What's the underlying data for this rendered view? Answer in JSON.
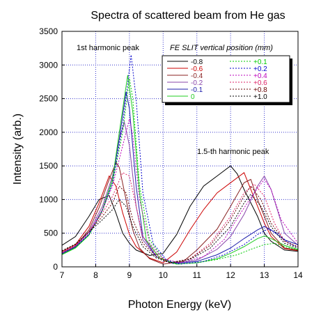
{
  "chart_data": {
    "type": "line",
    "title": "Spectra of scattered beam from He gas",
    "xlabel": "Photon Energy (keV)",
    "ylabel": "Intensity (arb.)",
    "xlim": [
      7,
      14
    ],
    "ylim": [
      0,
      3500
    ],
    "xticks": [
      "7",
      "8",
      "9",
      "10",
      "11",
      "12",
      "13",
      "14"
    ],
    "yticks": [
      "0",
      "500",
      "1000",
      "1500",
      "2000",
      "2500",
      "3000",
      "3500"
    ],
    "grid": true,
    "legend_title": "FE SLIT vertical position (mm)",
    "legend_position": "top-right",
    "annotations": [
      "1st harmonic peak",
      "1.5-th harmonic peak"
    ],
    "series": [
      {
        "name": "-0.8",
        "color": "#000000",
        "dash": "solid",
        "points": [
          [
            7,
            320
          ],
          [
            7.4,
            450
          ],
          [
            7.8,
            750
          ],
          [
            8.1,
            1000
          ],
          [
            8.4,
            1060
          ],
          [
            8.6,
            800
          ],
          [
            8.8,
            500
          ],
          [
            9.0,
            350
          ],
          [
            9.2,
            250
          ],
          [
            9.6,
            170
          ],
          [
            10.0,
            200
          ],
          [
            10.4,
            480
          ],
          [
            10.8,
            900
          ],
          [
            11.2,
            1200
          ],
          [
            11.6,
            1350
          ],
          [
            12.0,
            1500
          ],
          [
            12.2,
            1380
          ],
          [
            12.4,
            1150
          ],
          [
            12.8,
            750
          ],
          [
            13.0,
            500
          ],
          [
            13.2,
            380
          ],
          [
            13.6,
            250
          ],
          [
            14,
            230
          ]
        ]
      },
      {
        "name": "-0.6",
        "color": "#cc0000",
        "dash": "solid",
        "points": [
          [
            7,
            230
          ],
          [
            7.4,
            330
          ],
          [
            7.8,
            600
          ],
          [
            8.1,
            950
          ],
          [
            8.4,
            1350
          ],
          [
            8.6,
            1200
          ],
          [
            8.8,
            800
          ],
          [
            9.0,
            480
          ],
          [
            9.2,
            300
          ],
          [
            9.6,
            130
          ],
          [
            10.0,
            60
          ],
          [
            10.4,
            220
          ],
          [
            10.8,
            550
          ],
          [
            11.2,
            850
          ],
          [
            11.6,
            1100
          ],
          [
            12.0,
            1250
          ],
          [
            12.4,
            1400
          ],
          [
            12.6,
            1150
          ],
          [
            13.0,
            650
          ],
          [
            13.2,
            450
          ],
          [
            13.6,
            270
          ],
          [
            14,
            240
          ]
        ]
      },
      {
        "name": "-0.4",
        "color": "#882222",
        "dash": "solid",
        "points": [
          [
            7,
            210
          ],
          [
            7.4,
            310
          ],
          [
            7.8,
            550
          ],
          [
            8.1,
            880
          ],
          [
            8.4,
            1300
          ],
          [
            8.6,
            1550
          ],
          [
            8.7,
            1480
          ],
          [
            8.9,
            1000
          ],
          [
            9.1,
            550
          ],
          [
            9.3,
            280
          ],
          [
            9.6,
            120
          ],
          [
            10.0,
            40
          ],
          [
            10.6,
            80
          ],
          [
            11.0,
            250
          ],
          [
            11.6,
            560
          ],
          [
            12.0,
            900
          ],
          [
            12.4,
            1250
          ],
          [
            12.6,
            1300
          ],
          [
            12.8,
            1000
          ],
          [
            13.2,
            500
          ],
          [
            13.6,
            280
          ],
          [
            14,
            250
          ]
        ]
      },
      {
        "name": "-0.2",
        "color": "#8844aa",
        "dash": "solid",
        "points": [
          [
            7,
            200
          ],
          [
            7.4,
            300
          ],
          [
            7.8,
            520
          ],
          [
            8.2,
            900
          ],
          [
            8.5,
            1350
          ],
          [
            8.7,
            1900
          ],
          [
            8.85,
            2150
          ],
          [
            9.0,
            1800
          ],
          [
            9.2,
            900
          ],
          [
            9.4,
            400
          ],
          [
            9.8,
            150
          ],
          [
            10.3,
            50
          ],
          [
            11.0,
            100
          ],
          [
            11.6,
            260
          ],
          [
            12.0,
            450
          ],
          [
            12.4,
            780
          ],
          [
            12.8,
            1200
          ],
          [
            13.0,
            1350
          ],
          [
            13.2,
            1150
          ],
          [
            13.6,
            500
          ],
          [
            14,
            320
          ]
        ]
      },
      {
        "name": "-0.1",
        "color": "#1a1aaa",
        "dash": "solid",
        "points": [
          [
            7,
            190
          ],
          [
            7.4,
            290
          ],
          [
            7.8,
            480
          ],
          [
            8.2,
            850
          ],
          [
            8.5,
            1300
          ],
          [
            8.7,
            1900
          ],
          [
            8.9,
            2600
          ],
          [
            9.0,
            2350
          ],
          [
            9.2,
            1200
          ],
          [
            9.4,
            450
          ],
          [
            9.8,
            150
          ],
          [
            10.3,
            50
          ],
          [
            11.0,
            80
          ],
          [
            11.6,
            180
          ],
          [
            12.0,
            280
          ],
          [
            12.4,
            420
          ],
          [
            12.8,
            550
          ],
          [
            13.0,
            600
          ],
          [
            13.2,
            550
          ],
          [
            13.6,
            400
          ],
          [
            14,
            330
          ]
        ]
      },
      {
        "name": "0",
        "color": "#22cc22",
        "dash": "solid",
        "points": [
          [
            7,
            180
          ],
          [
            7.4,
            280
          ],
          [
            7.8,
            470
          ],
          [
            8.2,
            850
          ],
          [
            8.5,
            1300
          ],
          [
            8.7,
            2000
          ],
          [
            8.95,
            2850
          ],
          [
            9.1,
            2300
          ],
          [
            9.3,
            1100
          ],
          [
            9.5,
            400
          ],
          [
            9.9,
            130
          ],
          [
            10.4,
            40
          ],
          [
            11.0,
            60
          ],
          [
            11.6,
            120
          ],
          [
            12.0,
            200
          ],
          [
            12.4,
            300
          ],
          [
            12.8,
            420
          ],
          [
            13.0,
            460
          ],
          [
            13.2,
            420
          ],
          [
            13.6,
            320
          ],
          [
            14,
            260
          ]
        ]
      },
      {
        "name": "+0.1",
        "color": "#00cc00",
        "dash": "dashed",
        "points": [
          [
            7,
            190
          ],
          [
            7.4,
            290
          ],
          [
            7.8,
            470
          ],
          [
            8.2,
            830
          ],
          [
            8.5,
            1250
          ],
          [
            8.8,
            2000
          ],
          [
            9.0,
            2800
          ],
          [
            9.1,
            2500
          ],
          [
            9.3,
            1200
          ],
          [
            9.6,
            400
          ],
          [
            10.0,
            120
          ],
          [
            10.4,
            40
          ],
          [
            11.0,
            60
          ],
          [
            11.6,
            110
          ],
          [
            12.2,
            180
          ],
          [
            12.6,
            260
          ],
          [
            13.0,
            330
          ],
          [
            13.3,
            350
          ],
          [
            13.6,
            300
          ],
          [
            14,
            250
          ]
        ]
      },
      {
        "name": "+0.2",
        "color": "#0000cc",
        "dash": "dashed",
        "points": [
          [
            7,
            200
          ],
          [
            7.4,
            300
          ],
          [
            7.8,
            480
          ],
          [
            8.2,
            840
          ],
          [
            8.5,
            1250
          ],
          [
            8.8,
            2100
          ],
          [
            9.05,
            3150
          ],
          [
            9.2,
            2500
          ],
          [
            9.4,
            1100
          ],
          [
            9.7,
            350
          ],
          [
            10.1,
            100
          ],
          [
            10.5,
            40
          ],
          [
            11.2,
            80
          ],
          [
            11.8,
            180
          ],
          [
            12.4,
            330
          ],
          [
            12.8,
            480
          ],
          [
            13.1,
            560
          ],
          [
            13.4,
            500
          ],
          [
            13.7,
            360
          ],
          [
            14,
            280
          ]
        ]
      },
      {
        "name": "+0.4",
        "color": "#bb00bb",
        "dash": "dashed",
        "points": [
          [
            7,
            210
          ],
          [
            7.4,
            310
          ],
          [
            7.8,
            500
          ],
          [
            8.2,
            850
          ],
          [
            8.5,
            1200
          ],
          [
            8.8,
            1800
          ],
          [
            9.0,
            2200
          ],
          [
            9.1,
            1950
          ],
          [
            9.3,
            1000
          ],
          [
            9.6,
            350
          ],
          [
            10.0,
            120
          ],
          [
            10.5,
            60
          ],
          [
            11.2,
            150
          ],
          [
            11.8,
            400
          ],
          [
            12.3,
            800
          ],
          [
            12.7,
            1100
          ],
          [
            13.0,
            1300
          ],
          [
            13.2,
            1150
          ],
          [
            13.5,
            700
          ],
          [
            14,
            350
          ]
        ]
      },
      {
        "name": "+0.6",
        "color": "#dd2266",
        "dash": "dashed",
        "points": [
          [
            7,
            220
          ],
          [
            7.4,
            320
          ],
          [
            7.8,
            520
          ],
          [
            8.2,
            800
          ],
          [
            8.5,
            1050
          ],
          [
            8.8,
            1400
          ],
          [
            9.0,
            1350
          ],
          [
            9.2,
            900
          ],
          [
            9.4,
            450
          ],
          [
            9.8,
            180
          ],
          [
            10.2,
            60
          ],
          [
            10.8,
            120
          ],
          [
            11.4,
            350
          ],
          [
            12.0,
            750
          ],
          [
            12.4,
            1100
          ],
          [
            12.7,
            1230
          ],
          [
            13.0,
            1050
          ],
          [
            13.3,
            650
          ],
          [
            13.6,
            380
          ],
          [
            14,
            300
          ]
        ]
      },
      {
        "name": "+0.8",
        "color": "#660000",
        "dash": "dashed",
        "points": [
          [
            7,
            230
          ],
          [
            7.4,
            330
          ],
          [
            7.8,
            520
          ],
          [
            8.2,
            750
          ],
          [
            8.5,
            950
          ],
          [
            8.7,
            1200
          ],
          [
            8.9,
            1100
          ],
          [
            9.1,
            700
          ],
          [
            9.4,
            350
          ],
          [
            9.8,
            150
          ],
          [
            10.2,
            60
          ],
          [
            10.8,
            120
          ],
          [
            11.4,
            320
          ],
          [
            12.0,
            700
          ],
          [
            12.4,
            1050
          ],
          [
            12.6,
            1200
          ],
          [
            12.9,
            1000
          ],
          [
            13.2,
            650
          ],
          [
            13.6,
            380
          ],
          [
            14,
            300
          ]
        ]
      },
      {
        "name": "+1.0",
        "color": "#000000",
        "dash": "dashed",
        "points": [
          [
            7,
            240
          ],
          [
            7.4,
            340
          ],
          [
            7.8,
            520
          ],
          [
            8.2,
            700
          ],
          [
            8.5,
            850
          ],
          [
            8.7,
            1000
          ],
          [
            8.9,
            900
          ],
          [
            9.1,
            600
          ],
          [
            9.4,
            300
          ],
          [
            9.8,
            130
          ],
          [
            10.2,
            60
          ],
          [
            10.8,
            110
          ],
          [
            11.4,
            280
          ],
          [
            12.0,
            600
          ],
          [
            12.4,
            950
          ],
          [
            12.6,
            1080
          ],
          [
            12.9,
            900
          ],
          [
            13.2,
            600
          ],
          [
            13.6,
            350
          ],
          [
            14,
            280
          ]
        ]
      }
    ]
  }
}
